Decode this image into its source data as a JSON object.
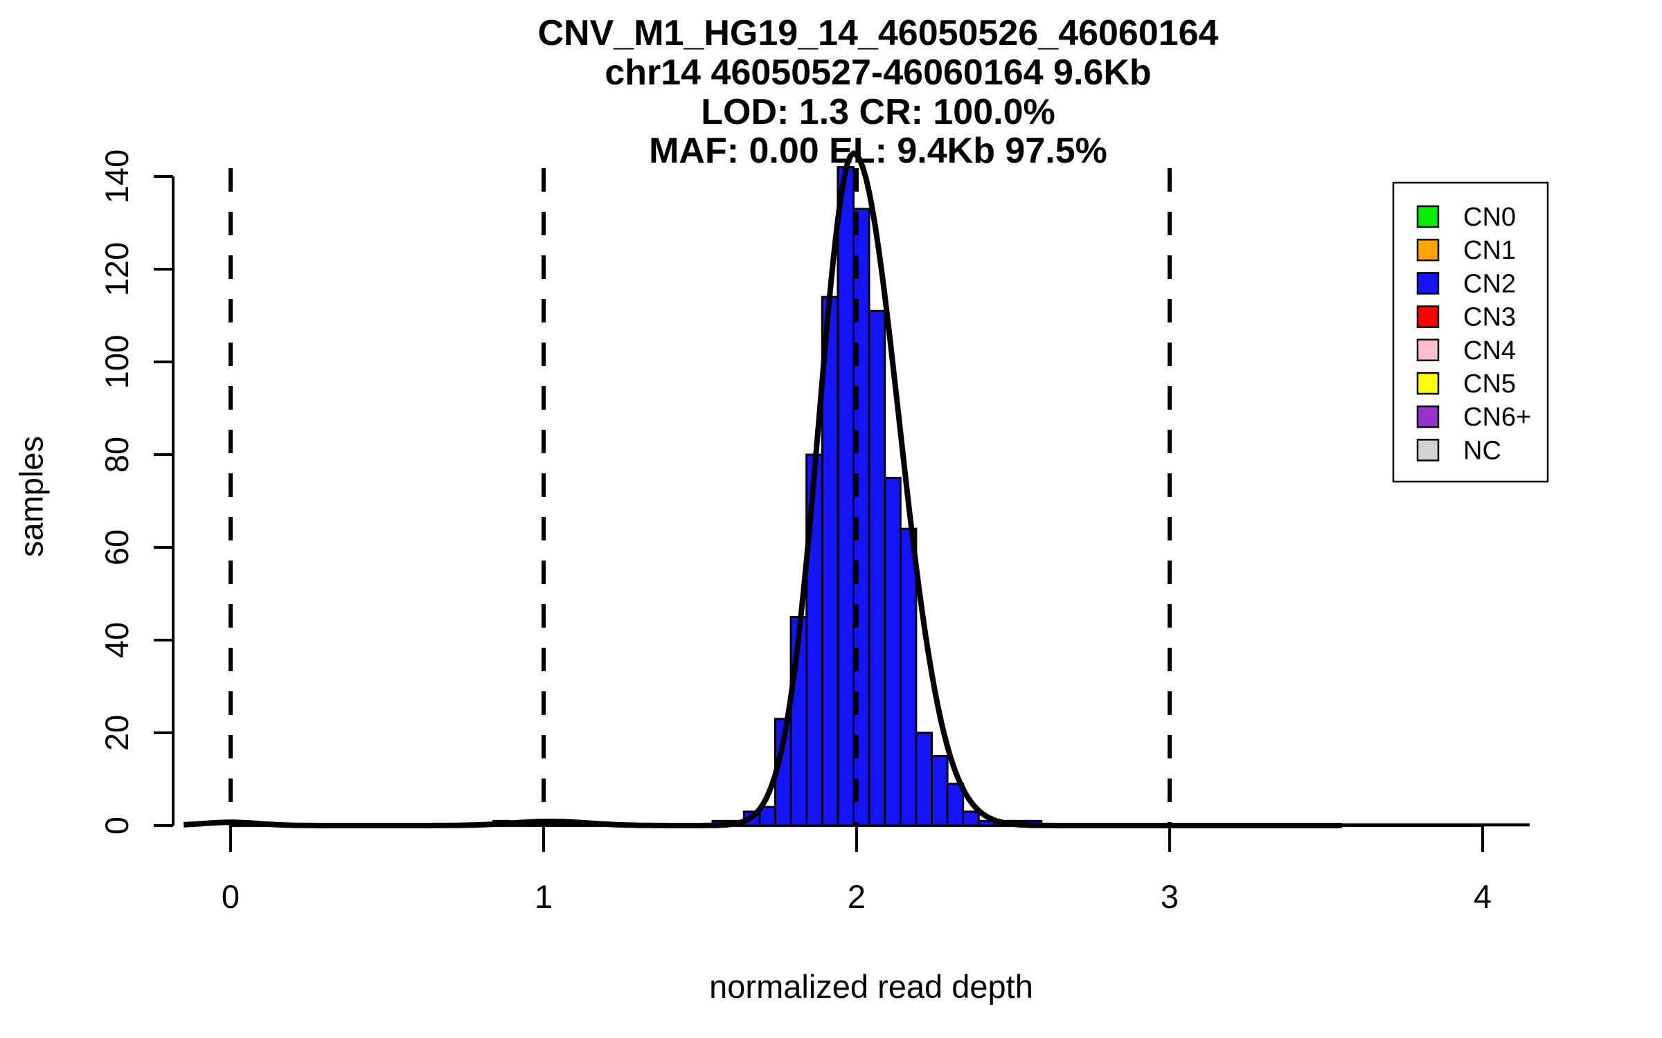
{
  "chart_data": {
    "type": "bar",
    "subtype": "histogram-with-density-curve",
    "title_lines": [
      "CNV_M1_HG19_14_46050526_46060164",
      "chr14 46050527-46060164 9.6Kb",
      "LOD: 1.3 CR: 100.0%",
      "MAF: 0.00 EL: 9.4Kb 97.5%"
    ],
    "xlabel": "normalized read depth",
    "ylabel": "samples",
    "x_ticks": [
      0,
      1,
      2,
      3,
      4
    ],
    "y_ticks": [
      0,
      20,
      40,
      60,
      80,
      100,
      120,
      140
    ],
    "xlim": [
      -0.15,
      4.15
    ],
    "ylim": [
      0,
      147
    ],
    "grid": false,
    "bin_width": 0.05,
    "bars": [
      {
        "x": 0.84,
        "count": 1,
        "cn": "CN1",
        "color": "#FFA500"
      },
      {
        "x": 1.54,
        "count": 1,
        "cn": "CN2",
        "color": "#1414FF"
      },
      {
        "x": 1.59,
        "count": 1,
        "cn": "CN2",
        "color": "#1414FF"
      },
      {
        "x": 1.64,
        "count": 3,
        "cn": "CN2",
        "color": "#1414FF"
      },
      {
        "x": 1.69,
        "count": 4,
        "cn": "CN2",
        "color": "#1414FF"
      },
      {
        "x": 1.74,
        "count": 23,
        "cn": "CN2",
        "color": "#1414FF"
      },
      {
        "x": 1.79,
        "count": 45,
        "cn": "CN2",
        "color": "#1414FF"
      },
      {
        "x": 1.84,
        "count": 80,
        "cn": "CN2",
        "color": "#1414FF"
      },
      {
        "x": 1.89,
        "count": 114,
        "cn": "CN2",
        "color": "#1414FF"
      },
      {
        "x": 1.94,
        "count": 142,
        "cn": "CN2",
        "color": "#1414FF"
      },
      {
        "x": 1.99,
        "count": 133,
        "cn": "CN2",
        "color": "#1414FF"
      },
      {
        "x": 2.04,
        "count": 111,
        "cn": "CN2",
        "color": "#1414FF"
      },
      {
        "x": 2.09,
        "count": 75,
        "cn": "CN2",
        "color": "#1414FF"
      },
      {
        "x": 2.14,
        "count": 64,
        "cn": "CN2",
        "color": "#1414FF"
      },
      {
        "x": 2.19,
        "count": 20,
        "cn": "CN2",
        "color": "#1414FF"
      },
      {
        "x": 2.24,
        "count": 15,
        "cn": "CN2",
        "color": "#1414FF"
      },
      {
        "x": 2.29,
        "count": 9,
        "cn": "CN2",
        "color": "#1414FF"
      },
      {
        "x": 2.34,
        "count": 3,
        "cn": "CN2",
        "color": "#1414FF"
      },
      {
        "x": 2.39,
        "count": 1,
        "cn": "CN2",
        "color": "#1414FF"
      },
      {
        "x": 2.44,
        "count": 1,
        "cn": "CN2",
        "color": "#1414FF"
      },
      {
        "x": 2.49,
        "count": 1,
        "cn": "CN2",
        "color": "#1414FF"
      },
      {
        "x": 2.54,
        "count": 1,
        "cn": "CN2",
        "color": "#1414FF"
      }
    ],
    "dashed_vlines_x": [
      0,
      1,
      2,
      3
    ],
    "fit_curve": {
      "shape": "gaussian",
      "mean": 1.99,
      "amplitude": 145,
      "sigma_left": 0.11,
      "sigma_right": 0.145,
      "minor_bumps": [
        {
          "mean": 0.0,
          "amplitude": 0.7,
          "sigma": 0.09
        },
        {
          "mean": 1.02,
          "amplitude": 0.9,
          "sigma": 0.12
        }
      ],
      "baseline_thick_to": 3.55,
      "color": "#000000"
    },
    "legend": {
      "position": "top-right",
      "items": [
        {
          "label": "CN0",
          "color": "#00EE00"
        },
        {
          "label": "CN1",
          "color": "#FFA500"
        },
        {
          "label": "CN2",
          "color": "#1414FF"
        },
        {
          "label": "CN3",
          "color": "#FF0000"
        },
        {
          "label": "CN4",
          "color": "#FFC0CB"
        },
        {
          "label": "CN5",
          "color": "#FFFF00"
        },
        {
          "label": "CN6+",
          "color": "#9932CC"
        },
        {
          "label": "NC",
          "color": "#D3D3D3"
        }
      ]
    },
    "colors": {
      "axis": "#000000",
      "text": "#000000",
      "background": "#FFFFFF"
    }
  }
}
